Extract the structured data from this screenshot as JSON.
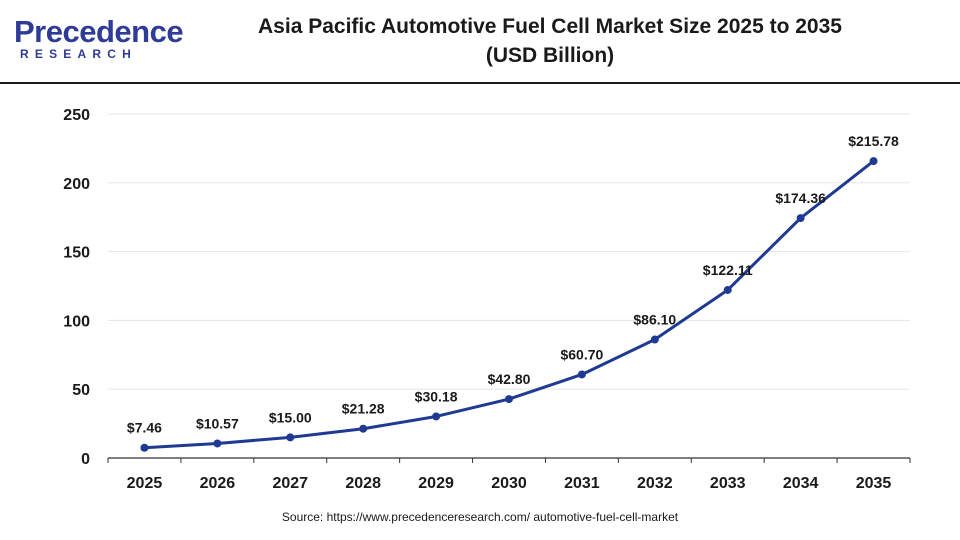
{
  "logo": {
    "word": "Precedence",
    "sub": "RESEARCH"
  },
  "header": {
    "title_line1": "Asia Pacific Automotive Fuel Cell Market Size 2025 to 2035",
    "title_line2": "(USD Billion)"
  },
  "source": "Source: https://www.precedenceresearch.com/ automotive-fuel-cell-market",
  "colors": {
    "line": "#1f3a93",
    "logo": "#2e3b97",
    "grid": "#e6e6e6",
    "axis": "#333333"
  },
  "chart_data": {
    "type": "line",
    "title": "Asia Pacific Automotive Fuel Cell Market Size 2025 to 2035 (USD Billion)",
    "xlabel": "",
    "ylabel": "",
    "categories": [
      "2025",
      "2026",
      "2027",
      "2028",
      "2029",
      "2030",
      "2031",
      "2032",
      "2033",
      "2034",
      "2035"
    ],
    "values": [
      7.46,
      10.57,
      15.0,
      21.28,
      30.18,
      42.8,
      60.7,
      86.1,
      122.11,
      174.36,
      215.78
    ],
    "data_labels": [
      "$7.46",
      "$10.57",
      "$15.00",
      "$21.28",
      "$30.18",
      "$42.80",
      "$60.70",
      "$86.10",
      "$122.11",
      "$174.36",
      "$215.78"
    ],
    "ylim": [
      0,
      250
    ],
    "yticks": [
      0,
      50,
      100,
      150,
      200,
      250
    ],
    "grid": true,
    "legend": "none"
  }
}
